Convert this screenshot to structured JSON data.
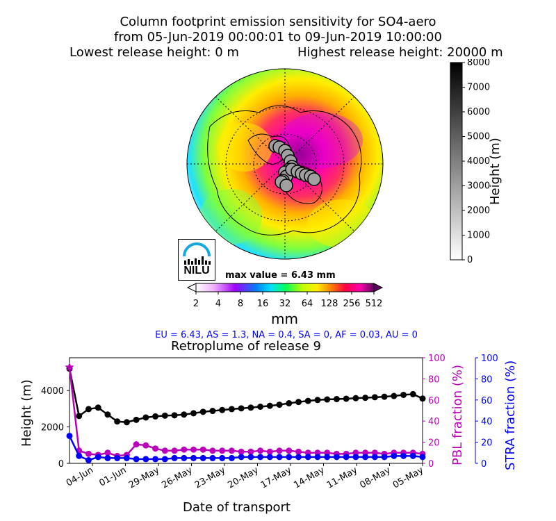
{
  "header": {
    "line1": "Column footprint emission sensitivity for SO4-aero",
    "line2": "from 05-Jun-2019 00:00:01 to 09-Jun-2019 10:00:00",
    "lowest_label": "Lowest release height: 0 m",
    "highest_label": "Highest release height: 20000 m"
  },
  "logo": {
    "text": "NILU"
  },
  "map": {
    "max_value_label": "max value = 6.43 mm",
    "colorbar_ticks": [
      "2",
      "4",
      "8",
      "16",
      "32",
      "64",
      "128",
      "256",
      "512"
    ],
    "colorbar_unit": "mm",
    "colors": {
      "land_outline": "#000000",
      "low": "#9ef5ff",
      "mid": "#ffee00",
      "high": "#ff00aa",
      "max": "#7a0060"
    }
  },
  "height_bar": {
    "label": "Height (m)",
    "ticks": [
      "0",
      "1000",
      "2000",
      "3000",
      "4000",
      "5000",
      "6000",
      "7000",
      "8000"
    ]
  },
  "stats_line": "EU = 6.43,  AS = 1.3,  NA = 0.4,  SA = 0,  AF = 0.03,  AU = 0",
  "chart_data": {
    "type": "line",
    "title": "Retroplume of release 9",
    "xlabel": "Date of transport",
    "ylabel": "Height (m)",
    "ylabel_right1": "PBL fraction (%)",
    "ylabel_right2": "STRA fraction (%)",
    "x_tick_labels": [
      "04-Jun",
      "01-Jun",
      "29-May",
      "26-May",
      "23-May",
      "20-May",
      "17-May",
      "14-May",
      "11-May",
      "08-May",
      "05-May"
    ],
    "y_ticks": [
      "0",
      "2000",
      "4000"
    ],
    "y2_ticks": [
      "0",
      "20",
      "40",
      "60",
      "80",
      "100"
    ],
    "y3_ticks": [
      "0",
      "20",
      "40",
      "60",
      "80",
      "100"
    ],
    "ylim": [
      0,
      5800
    ],
    "y2lim": [
      0,
      100
    ],
    "y3lim": [
      0,
      100
    ],
    "series": [
      {
        "axis": "left",
        "color": "#000000",
        "values": [
          5200,
          2600,
          2980,
          3060,
          2680,
          2300,
          2260,
          2390,
          2520,
          2580,
          2620,
          2640,
          2680,
          2750,
          2830,
          2880,
          2930,
          2980,
          3020,
          3060,
          3110,
          3160,
          3220,
          3300,
          3370,
          3430,
          3480,
          3510,
          3530,
          3550,
          3580,
          3600,
          3630,
          3660,
          3700,
          3760,
          3800,
          3560
        ]
      },
      {
        "axis": "right1",
        "color": "#bb00bb",
        "values": [
          91,
          12,
          9,
          8,
          10,
          7,
          8,
          18,
          17,
          14,
          12,
          12,
          13,
          13,
          13,
          12,
          12,
          12,
          11,
          11,
          12,
          11,
          12,
          12,
          11,
          10,
          10,
          10,
          9,
          9,
          10,
          10,
          10,
          9,
          10,
          10,
          10,
          9
        ]
      },
      {
        "axis": "right2",
        "color": "#0000ff",
        "values": [
          26,
          7,
          3,
          6,
          5,
          5,
          5,
          4,
          4,
          4,
          4,
          5,
          5,
          5,
          5,
          5,
          5,
          5,
          6,
          6,
          6,
          6,
          6,
          6,
          6,
          6,
          6,
          6,
          6,
          6,
          6,
          6,
          6,
          6,
          7,
          7,
          7,
          6
        ]
      }
    ]
  }
}
